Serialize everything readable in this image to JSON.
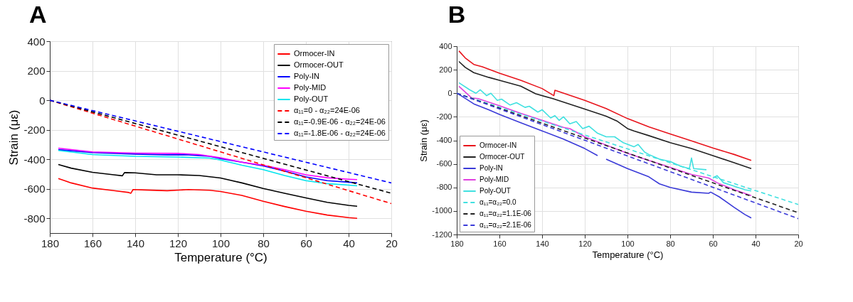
{
  "chart_data": [
    {
      "type": "line",
      "title": "A",
      "xlabel": "Temperature (°C)",
      "ylabel": "Strain (με)",
      "xlim": [
        180,
        20
      ],
      "ylim": [
        -900,
        400
      ],
      "xticks": [
        180,
        160,
        140,
        120,
        100,
        80,
        60,
        40,
        20
      ],
      "yticks": [
        -800,
        -600,
        -400,
        -200,
        0,
        200,
        400
      ],
      "grid": true,
      "legend": "top right",
      "series": [
        {
          "name": "Ormocer-IN",
          "color": "#ff0000",
          "x": [
            176,
            170,
            160,
            150,
            143,
            142,
            141,
            135,
            125,
            115,
            105,
            100,
            90,
            80,
            70,
            60,
            50,
            40,
            36
          ],
          "values": [
            -530,
            -560,
            -595,
            -612,
            -625,
            -630,
            -605,
            -608,
            -613,
            -605,
            -610,
            -618,
            -645,
            -685,
            -720,
            -752,
            -778,
            -795,
            -800
          ]
        },
        {
          "name": "Ormocer-OUT",
          "color": "#000000",
          "x": [
            176,
            170,
            160,
            150,
            146,
            145,
            140,
            130,
            120,
            110,
            100,
            90,
            80,
            70,
            60,
            50,
            40,
            36
          ],
          "values": [
            -435,
            -460,
            -488,
            -505,
            -512,
            -490,
            -492,
            -505,
            -505,
            -510,
            -527,
            -560,
            -598,
            -630,
            -662,
            -692,
            -712,
            -718
          ]
        },
        {
          "name": "Poly-IN",
          "color": "#0000ff",
          "x": [
            176,
            160,
            140,
            125,
            115,
            105,
            100,
            90,
            80,
            70,
            60,
            50,
            40,
            36
          ],
          "values": [
            -335,
            -355,
            -365,
            -370,
            -370,
            -380,
            -395,
            -420,
            -445,
            -480,
            -520,
            -545,
            -555,
            -560
          ]
        },
        {
          "name": "Poly-MID",
          "color": "#ff00ff",
          "x": [
            176,
            160,
            140,
            120,
            110,
            100,
            90,
            80,
            70,
            60,
            50,
            40,
            36
          ],
          "values": [
            -325,
            -350,
            -358,
            -360,
            -368,
            -390,
            -420,
            -440,
            -470,
            -505,
            -525,
            -535,
            -538
          ]
        },
        {
          "name": "Poly-OUT",
          "color": "#00e5ee",
          "x": [
            176,
            160,
            140,
            120,
            105,
            100,
            90,
            80,
            70,
            60,
            50,
            40,
            36
          ],
          "values": [
            -340,
            -368,
            -380,
            -385,
            -392,
            -405,
            -440,
            -470,
            -510,
            -545,
            -565,
            -575,
            -580
          ]
        },
        {
          "name": "α₁₁=0 - α₂₂=24E-06",
          "color": "#ff0000",
          "line_style": "dashed",
          "x": [
            180,
            20
          ],
          "values": [
            0,
            -700
          ]
        },
        {
          "name": "α₁₁=-0.9E-06 - α₂₂=24E-06",
          "color": "#000000",
          "line_style": "dashed",
          "x": [
            180,
            20
          ],
          "values": [
            0,
            -630
          ]
        },
        {
          "name": "α₁₁=-1.8E-06 - α₂₂=24E-06",
          "color": "#0000ff",
          "line_style": "dashed",
          "x": [
            180,
            20
          ],
          "values": [
            0,
            -560
          ]
        }
      ]
    },
    {
      "type": "line",
      "title": "B",
      "xlabel": "Temperature (°C)",
      "ylabel": "Strain (με)",
      "xlim": [
        180,
        20
      ],
      "ylim": [
        -1200,
        400
      ],
      "xticks": [
        180,
        160,
        140,
        120,
        100,
        80,
        60,
        40,
        20
      ],
      "yticks": [
        -1200,
        -1000,
        -800,
        -600,
        -400,
        -200,
        0,
        200,
        400
      ],
      "grid": true,
      "legend": "bottom left",
      "series": [
        {
          "name": "Ormocer-IN",
          "color": "#e8141c",
          "x": [
            179,
            176,
            172,
            168,
            160,
            150,
            140,
            134.5,
            134,
            120,
            110,
            100,
            90,
            80,
            70,
            60,
            50,
            42
          ],
          "values": [
            360,
            300,
            245,
            225,
            170,
            110,
            40,
            -20,
            25,
            -60,
            -130,
            -215,
            -285,
            -345,
            -405,
            -465,
            -520,
            -570
          ]
        },
        {
          "name": "Ormocer-OUT",
          "color": "#222222",
          "x": [
            179,
            176,
            172,
            165,
            160,
            150,
            143,
            135,
            120,
            110,
            105,
            100,
            97,
            90,
            80,
            70,
            60,
            50,
            42
          ],
          "values": [
            270,
            220,
            175,
            135,
            110,
            60,
            -5,
            -45,
            -135,
            -195,
            -235,
            -300,
            -320,
            -360,
            -420,
            -470,
            -530,
            -590,
            -640
          ]
        },
        {
          "name": "Poly-IN",
          "color": "#3a3ad8",
          "x": [
            180,
            178,
            172,
            165,
            160,
            150,
            140,
            130,
            120,
            114,
            112,
            110,
            100,
            90,
            85,
            80,
            70,
            62,
            61,
            57,
            50,
            45,
            42
          ],
          "values": [
            0,
            -20,
            -90,
            -140,
            -180,
            -250,
            -320,
            -390,
            -470,
            -530,
            null,
            -560,
            -640,
            -710,
            -770,
            -800,
            -840,
            -850,
            -840,
            -880,
            -970,
            -1030,
            -1060
          ]
        },
        {
          "name": "Poly-MID",
          "color": "#e040e0",
          "x": [
            179,
            176,
            173,
            170,
            160,
            150,
            140,
            130,
            127,
            120,
            110,
            100,
            90,
            80,
            70,
            62,
            58,
            50,
            42
          ],
          "values": [
            60,
            10,
            -40,
            -45,
            -105,
            -170,
            -230,
            -290,
            -300,
            -370,
            -440,
            -510,
            -570,
            -630,
            -690,
            -720,
            -760,
            -820,
            -870
          ]
        },
        {
          "name": "Poly-OUT",
          "color": "#40e0e0",
          "x": [
            179,
            174,
            171,
            169,
            166,
            164,
            161,
            159,
            155,
            152,
            148,
            146,
            142,
            140,
            136,
            134,
            132,
            130,
            127,
            124,
            121,
            118,
            114,
            110,
            106,
            102,
            97,
            95,
            92,
            90,
            85,
            80,
            75,
            71,
            70,
            69,
            63,
            61,
            60,
            58,
            55,
            50,
            45,
            42
          ],
          "values": [
            90,
            30,
            0,
            30,
            -20,
            0,
            -60,
            -50,
            -100,
            -80,
            -120,
            -110,
            -160,
            -140,
            -210,
            -190,
            -230,
            -200,
            -260,
            -240,
            -300,
            -280,
            -340,
            -370,
            -370,
            -420,
            -455,
            -435,
            -500,
            -520,
            -560,
            -580,
            -620,
            -640,
            -550,
            -640,
            -650,
            null,
            -720,
            -700,
            -760,
            -790,
            -820,
            -830
          ]
        },
        {
          "name": "α₁₁=α₂₂=0.0",
          "color": "#40e0e0",
          "line_style": "dashed",
          "x": [
            180,
            20
          ],
          "values": [
            0,
            -945
          ]
        },
        {
          "name": "α₁₁=α₂₂=1.1E-06",
          "color": "#222222",
          "line_style": "dashed",
          "x": [
            180,
            20
          ],
          "values": [
            0,
            -1015
          ]
        },
        {
          "name": "α₁₁=α₂₂=2.1E-06",
          "color": "#3a3ad8",
          "line_style": "dashed",
          "x": [
            180,
            20
          ],
          "values": [
            0,
            -1065
          ]
        }
      ]
    }
  ]
}
